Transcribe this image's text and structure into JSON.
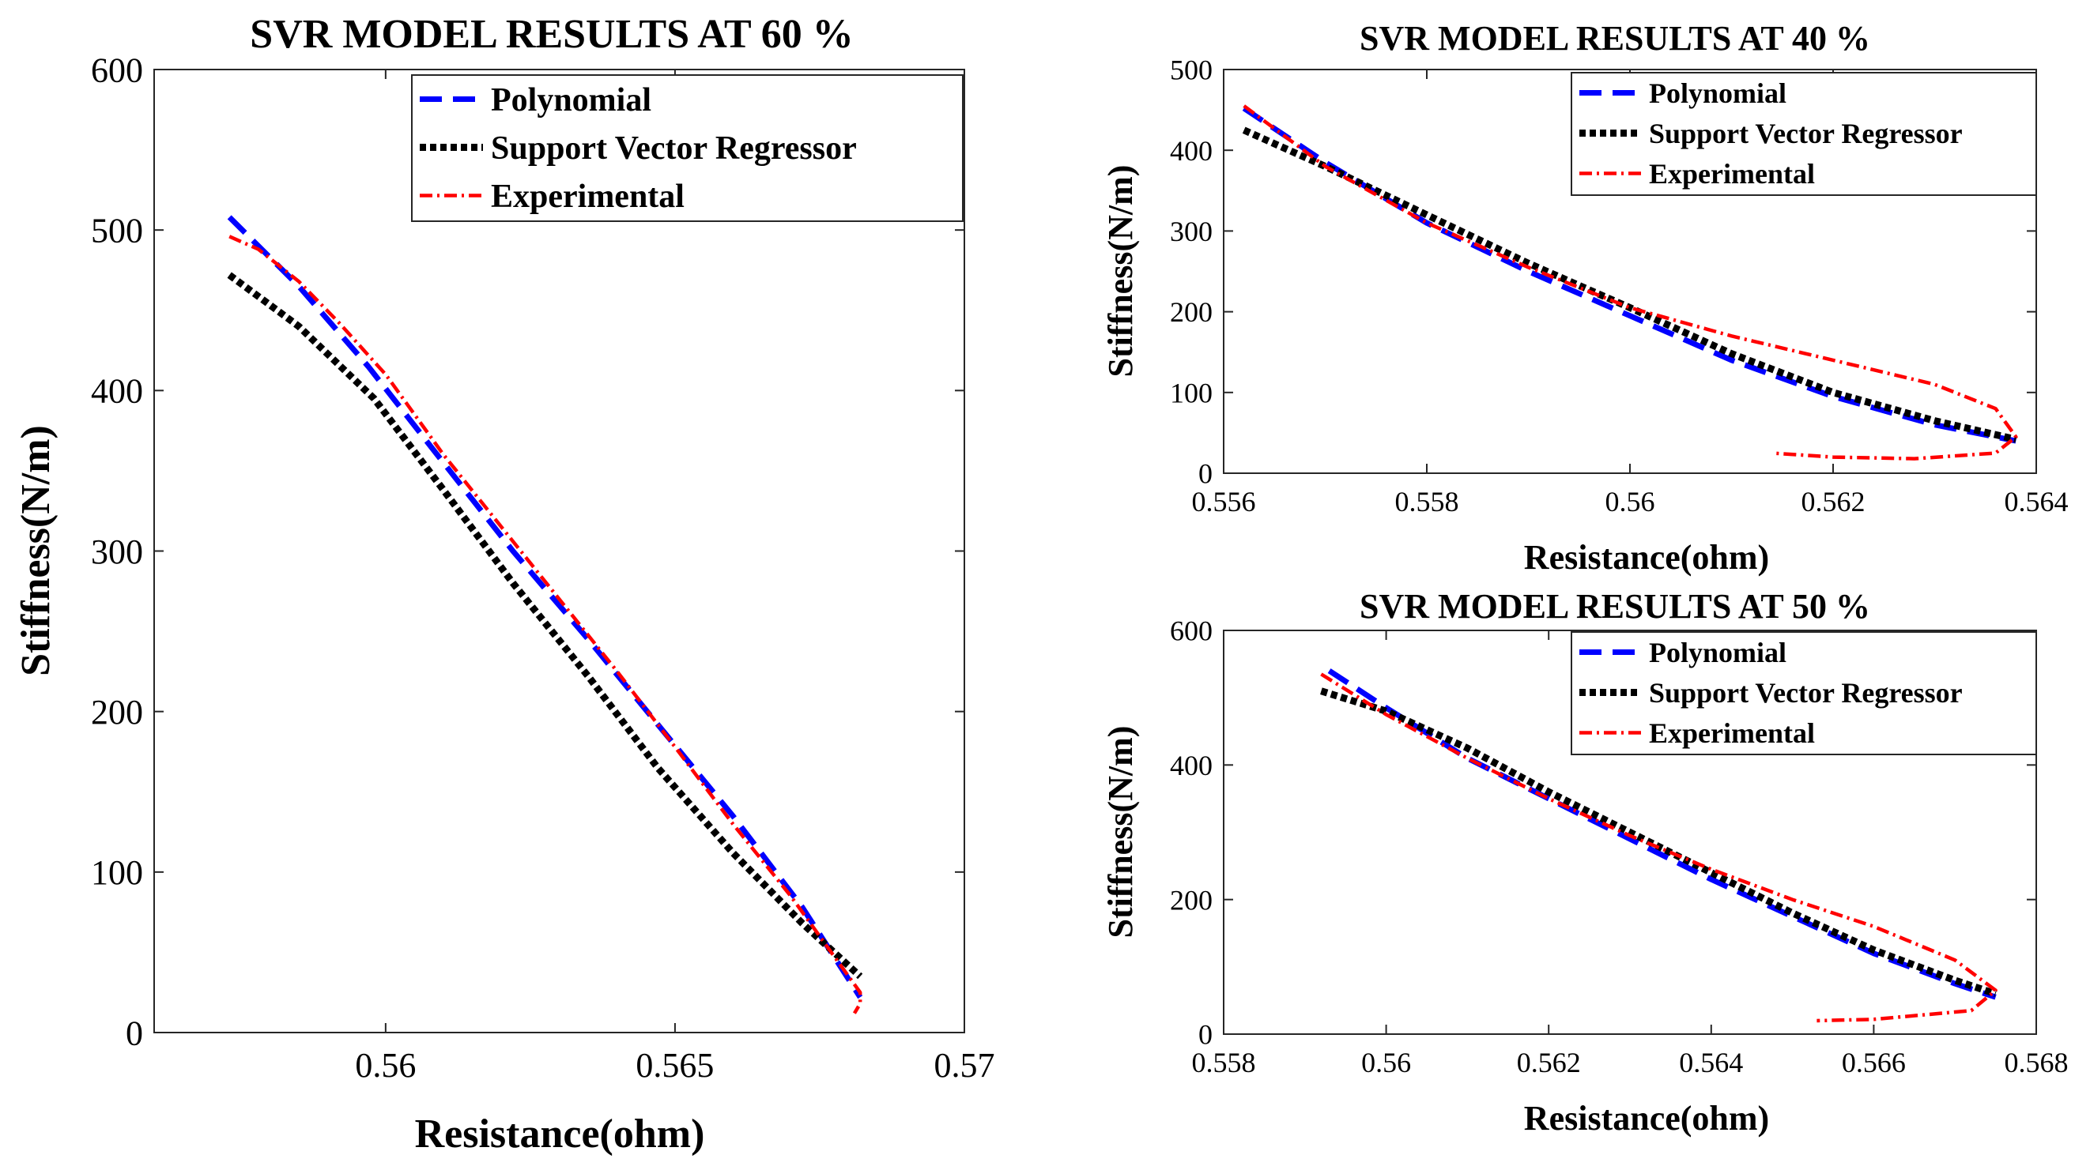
{
  "chart_data": [
    {
      "type": "line",
      "title": "SVR MODEL  RESULTS AT 60 %",
      "xlabel": "Resistance(ohm)",
      "ylabel": "Stiffness(N/m)",
      "xlim": [
        0.556,
        0.57
      ],
      "ylim": [
        0,
        600
      ],
      "xticks": [
        0.56,
        0.565,
        0.57
      ],
      "xtick_labels": [
        "0.56",
        "0.565",
        "0.57"
      ],
      "yticks": [
        0,
        100,
        200,
        300,
        400,
        500,
        600
      ],
      "ytick_labels": [
        "0",
        "100",
        "200",
        "300",
        "400",
        "500",
        "600"
      ],
      "legend_position": "top-right",
      "series": [
        {
          "name": "Polynomial",
          "color": "#0000ff",
          "style": "dashed",
          "x": [
            0.5573,
            0.5585,
            0.5597,
            0.561,
            0.5622,
            0.5635,
            0.5647,
            0.566,
            0.5672,
            0.5682
          ],
          "y": [
            508,
            465,
            415,
            355,
            300,
            245,
            192,
            135,
            78,
            22
          ]
        },
        {
          "name": "Support Vector Regressor",
          "color": "#000000",
          "style": "dotted",
          "x": [
            0.5573,
            0.5585,
            0.5598,
            0.561,
            0.5622,
            0.5635,
            0.5647,
            0.566,
            0.5672,
            0.5682
          ],
          "y": [
            472,
            440,
            395,
            338,
            280,
            222,
            165,
            112,
            68,
            35
          ]
        },
        {
          "name": "Experimental",
          "color": "#ff0000",
          "style": "dashdot",
          "x": [
            0.5573,
            0.5578,
            0.5585,
            0.5592,
            0.56,
            0.561,
            0.562,
            0.563,
            0.564,
            0.565,
            0.566,
            0.567,
            0.5678,
            0.5682,
            0.5682,
            0.5681
          ],
          "y": [
            496,
            488,
            468,
            442,
            410,
            360,
            315,
            270,
            225,
            178,
            130,
            85,
            45,
            25,
            18,
            12
          ]
        }
      ]
    },
    {
      "type": "line",
      "title": "SVR MODEL  RESULTS AT 40 %",
      "xlabel": "Resistance(ohm)",
      "ylabel": "Stiffness(N/m)",
      "xlim": [
        0.556,
        0.564
      ],
      "ylim": [
        0,
        500
      ],
      "xticks": [
        0.556,
        0.558,
        0.56,
        0.562,
        0.564
      ],
      "xtick_labels": [
        "0.556",
        "0.558",
        "0.56",
        "0.562",
        "0.564"
      ],
      "yticks": [
        0,
        100,
        200,
        300,
        400,
        500
      ],
      "ytick_labels": [
        "0",
        "100",
        "200",
        "300",
        "400",
        "500"
      ],
      "legend_position": "top-right",
      "series": [
        {
          "name": "Polynomial",
          "color": "#0000ff",
          "style": "dashed",
          "x": [
            0.5562,
            0.557,
            0.558,
            0.559,
            0.56,
            0.561,
            0.562,
            0.563,
            0.5638
          ],
          "y": [
            452,
            385,
            310,
            250,
            195,
            140,
            95,
            60,
            40
          ]
        },
        {
          "name": "Support Vector Regressor",
          "color": "#000000",
          "style": "dotted",
          "x": [
            0.5562,
            0.557,
            0.558,
            0.559,
            0.56,
            0.561,
            0.562,
            0.563,
            0.5638
          ],
          "y": [
            425,
            380,
            320,
            260,
            205,
            148,
            100,
            65,
            42
          ]
        },
        {
          "name": "Experimental",
          "color": "#ff0000",
          "style": "dashdot",
          "x": [
            0.5562,
            0.557,
            0.558,
            0.559,
            0.56,
            0.561,
            0.562,
            0.563,
            0.5636,
            0.5638,
            0.5636,
            0.5628,
            0.562,
            0.5614
          ],
          "y": [
            455,
            380,
            310,
            255,
            205,
            170,
            140,
            110,
            80,
            45,
            25,
            18,
            20,
            25
          ]
        }
      ]
    },
    {
      "type": "line",
      "title": "SVR MODEL RESULTS AT 50 %",
      "xlabel": "Resistance(ohm)",
      "ylabel": "Stiffness(N/m)",
      "xlim": [
        0.558,
        0.568
      ],
      "ylim": [
        0,
        600
      ],
      "xticks": [
        0.558,
        0.56,
        0.562,
        0.564,
        0.566,
        0.568
      ],
      "xtick_labels": [
        "0.558",
        "0.56",
        "0.562",
        "0.564",
        "0.566",
        "0.568"
      ],
      "yticks": [
        0,
        200,
        400,
        600
      ],
      "ytick_labels": [
        "0",
        "200",
        "400",
        "600"
      ],
      "legend_position": "top-right",
      "series": [
        {
          "name": "Polynomial",
          "color": "#0000ff",
          "style": "dashed",
          "x": [
            0.5593,
            0.56,
            0.561,
            0.562,
            0.563,
            0.564,
            0.565,
            0.566,
            0.567,
            0.5675
          ],
          "y": [
            540,
            485,
            410,
            350,
            290,
            230,
            175,
            120,
            75,
            55
          ]
        },
        {
          "name": "Support Vector Regressor",
          "color": "#000000",
          "style": "dotted",
          "x": [
            0.5592,
            0.56,
            0.561,
            0.562,
            0.563,
            0.564,
            0.565,
            0.566,
            0.567,
            0.5675
          ],
          "y": [
            510,
            480,
            425,
            360,
            300,
            240,
            180,
            125,
            80,
            60
          ]
        },
        {
          "name": "Experimental",
          "color": "#ff0000",
          "style": "dashdot",
          "x": [
            0.5592,
            0.56,
            0.561,
            0.562,
            0.563,
            0.564,
            0.565,
            0.566,
            0.567,
            0.5675,
            0.5672,
            0.566,
            0.5653
          ],
          "y": [
            535,
            475,
            410,
            350,
            295,
            245,
            200,
            160,
            110,
            65,
            35,
            22,
            20
          ]
        }
      ]
    }
  ]
}
